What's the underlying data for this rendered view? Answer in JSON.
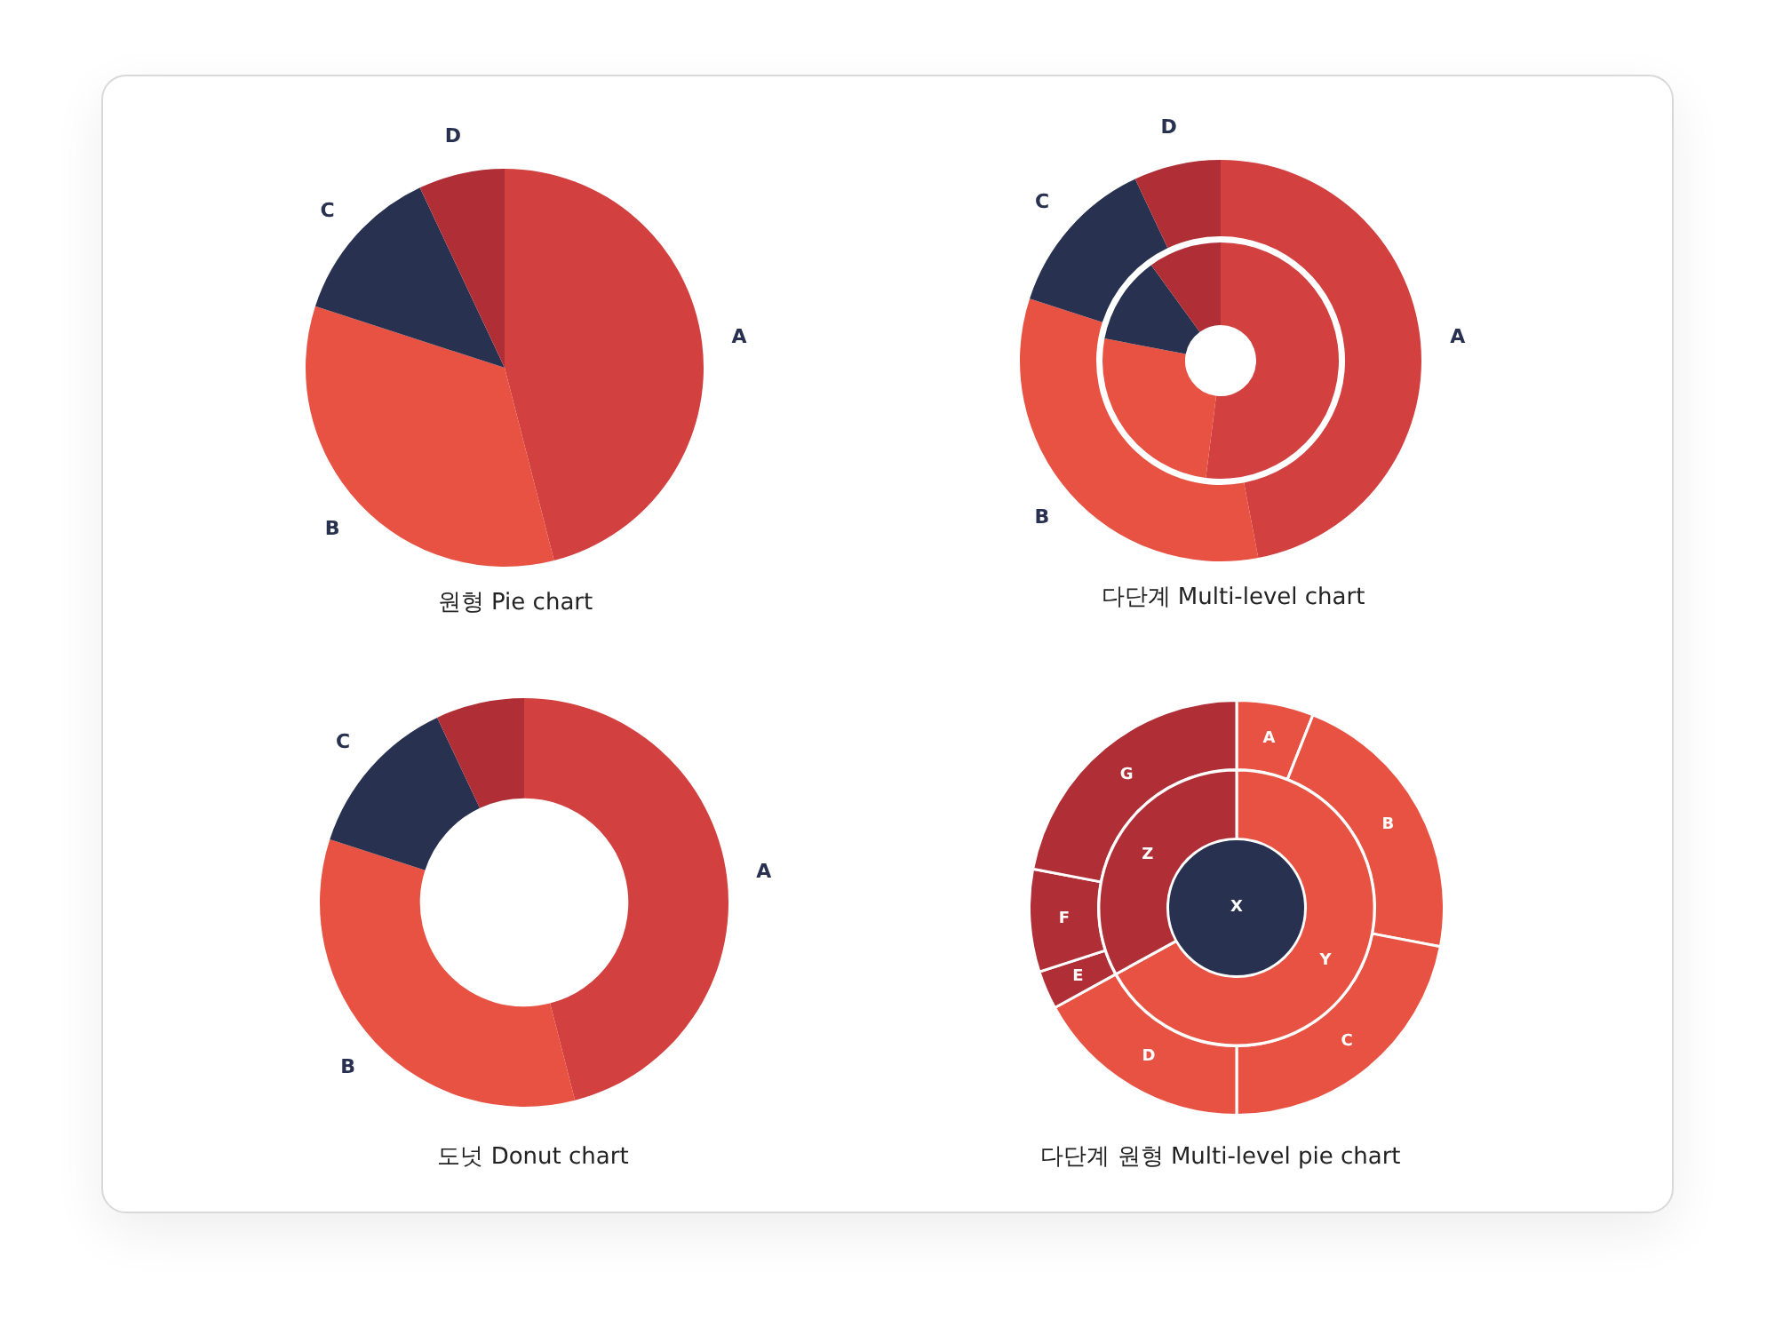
{
  "chart_data": [
    {
      "type": "pie",
      "title": "원형 Pie chart",
      "categories": [
        "A",
        "B",
        "C",
        "D"
      ],
      "values": [
        46,
        34,
        13,
        7
      ],
      "colors": [
        "#d24040",
        "#e85243",
        "#283250",
        "#b02f36"
      ]
    },
    {
      "type": "donut",
      "title": "다단계 Multi-level chart",
      "categories": [
        "A",
        "B",
        "C",
        "D"
      ],
      "series": [
        {
          "values": [
            47,
            33,
            13,
            7
          ],
          "colors": [
            "#d24040",
            "#e85243",
            "#283250",
            "#b02f36"
          ]
        },
        {
          "values": [
            52,
            26,
            12,
            10
          ],
          "colors": [
            "#d24040",
            "#e85243",
            "#283250",
            "#b02f36"
          ]
        }
      ]
    },
    {
      "type": "donut",
      "title": "도넛 Donut chart",
      "categories": [
        "A",
        "B",
        "C",
        null
      ],
      "values": [
        46,
        34,
        13,
        7
      ],
      "colors": [
        "#d24040",
        "#e85243",
        "#283250",
        "#b02f36"
      ]
    },
    {
      "type": "donut",
      "title": "다단계 원형 Multi-level pie chart",
      "categories": [
        "A",
        "B",
        "C",
        "D",
        "E",
        "F",
        "G"
      ],
      "values": [
        6,
        22,
        22,
        17,
        3,
        8,
        22
      ],
      "colors": [
        "#e85243",
        "#e85243",
        "#e85243",
        "#e85243",
        "#b02f36",
        "#b02f36",
        "#b02f36"
      ]
    },
    {
      "type": "donut",
      "categories": [
        "Y",
        "Z"
      ],
      "values": [
        67,
        33
      ],
      "colors": [
        "#e85243",
        "#b02f36"
      ],
      "annotations": [
        "X"
      ]
    }
  ]
}
